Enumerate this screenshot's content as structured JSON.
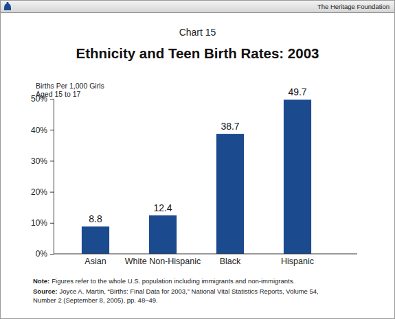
{
  "chart_data": {
    "type": "bar",
    "header": "The Heritage Foundation",
    "chart_label": "Chart 15",
    "title": "Ethnicity and Teen Birth Rates: 2003",
    "ylabel": [
      "Births Per 1,000 Girls",
      "Aged 15 to 17"
    ],
    "categories": [
      "Asian",
      "White Non-Hispanic",
      "Black",
      "Hispanic"
    ],
    "values": [
      8.8,
      12.4,
      38.7,
      49.7
    ],
    "color": "#1b4a8f",
    "ylim": [
      0,
      50
    ],
    "yticks": [
      {
        "value": 0,
        "label": "0%"
      },
      {
        "value": 10,
        "label": "10%"
      },
      {
        "value": 20,
        "label": "20%"
      },
      {
        "value": 30,
        "label": "30%"
      },
      {
        "value": 40,
        "label": "40%"
      },
      {
        "value": 50,
        "label": "50%"
      }
    ],
    "grid": false,
    "data_labels": true,
    "notes": [
      {
        "label": "Note:",
        "lines": [
          "Figures refer to the whole U.S. population including immigrants and non-immigrants."
        ]
      },
      {
        "label": "Source:",
        "lines": [
          "Joyce A. Martin, “Births: Final Data for 2003,” National Vital Statistics Reports, Volume 54,",
          "Number 2 (September 8, 2005), pp. 48–49."
        ]
      }
    ]
  }
}
